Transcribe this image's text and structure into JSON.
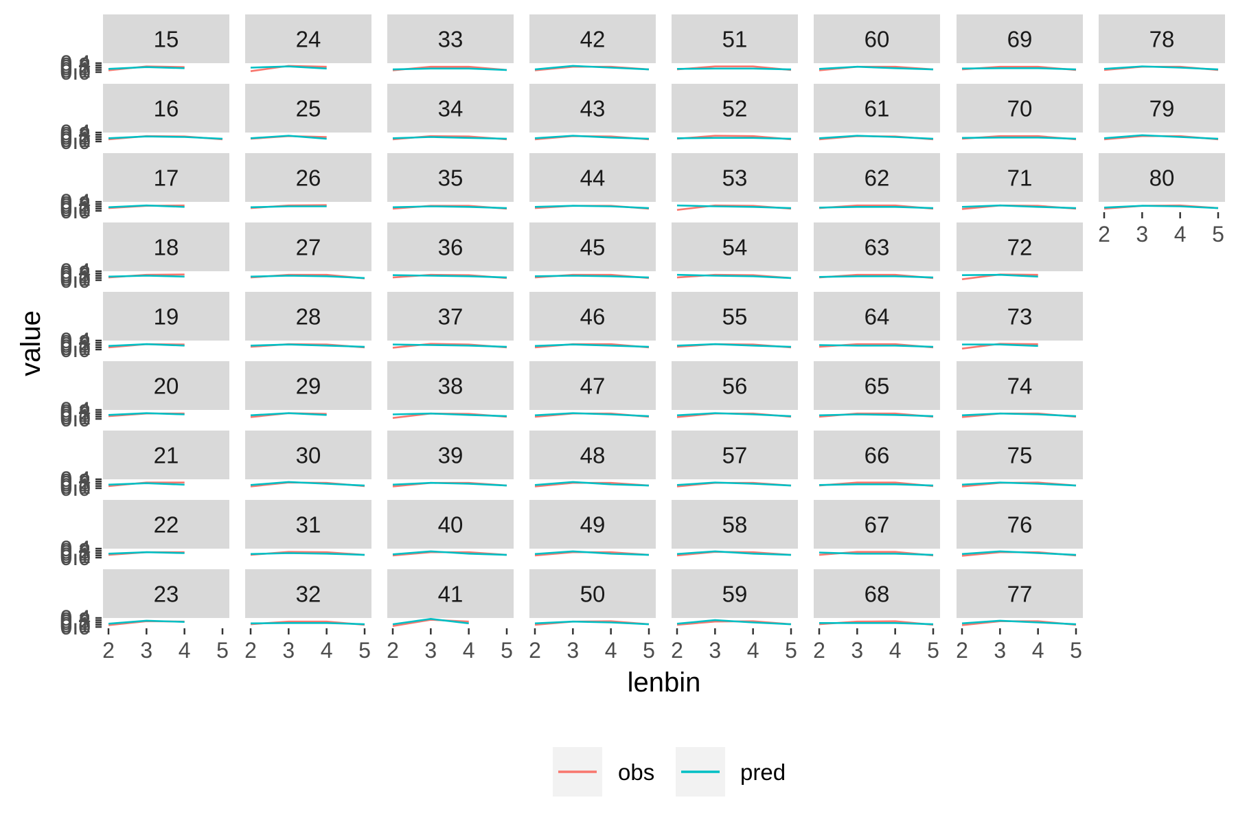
{
  "chart_data": {
    "type": "line",
    "facet_layout": "columns, 9 panels per column",
    "x_axis_label": "lenbin",
    "y_axis_label": "value",
    "x_ticks": [
      "2",
      "3",
      "4",
      "5"
    ],
    "xlim": [
      2,
      5
    ],
    "y_tick_labels": [
      "0.0",
      "0.1",
      "0.2",
      "0.3",
      "0.4"
    ],
    "ylim": [
      0,
      0.5
    ],
    "legend": {
      "position": "bottom",
      "entries": [
        {
          "name": "obs",
          "color": "#F8766D"
        },
        {
          "name": "pred",
          "color": "#00BFC4"
        }
      ]
    },
    "colors": {
      "panel_background": "#FFFFFF",
      "strip_background": "#D9D9D9",
      "axis_tick": "#333333"
    },
    "facets": [
      {
        "label": "15",
        "x": [
          2,
          3,
          4
        ],
        "obs": [
          0.1,
          0.32,
          0.28
        ],
        "pred": [
          0.18,
          0.28,
          0.22
        ]
      },
      {
        "label": "16",
        "x": [
          2,
          3,
          4,
          5
        ],
        "obs": [
          0.12,
          0.3,
          0.28,
          0.12
        ],
        "pred": [
          0.18,
          0.28,
          0.25,
          0.15
        ]
      },
      {
        "label": "17",
        "x": [
          2,
          3,
          4
        ],
        "obs": [
          0.15,
          0.28,
          0.3
        ],
        "pred": [
          0.2,
          0.3,
          0.22
        ]
      },
      {
        "label": "18",
        "x": [
          2,
          3,
          4
        ],
        "obs": [
          0.15,
          0.3,
          0.32
        ],
        "pred": [
          0.2,
          0.25,
          0.2
        ]
      },
      {
        "label": "19",
        "x": [
          2,
          3,
          4
        ],
        "obs": [
          0.12,
          0.3,
          0.28
        ],
        "pred": [
          0.2,
          0.3,
          0.22
        ]
      },
      {
        "label": "20",
        "x": [
          2,
          3,
          4
        ],
        "obs": [
          0.15,
          0.3,
          0.3
        ],
        "pred": [
          0.22,
          0.32,
          0.25
        ]
      },
      {
        "label": "21",
        "x": [
          2,
          3,
          4
        ],
        "obs": [
          0.12,
          0.32,
          0.32
        ],
        "pred": [
          0.2,
          0.28,
          0.2
        ]
      },
      {
        "label": "22",
        "x": [
          2,
          3,
          4
        ],
        "obs": [
          0.15,
          0.3,
          0.3
        ],
        "pred": [
          0.22,
          0.3,
          0.25
        ]
      },
      {
        "label": "23",
        "x": [
          2,
          3,
          4
        ],
        "obs": [
          0.1,
          0.32,
          0.3
        ],
        "pred": [
          0.18,
          0.35,
          0.28
        ]
      },
      {
        "label": "24",
        "x": [
          2,
          3,
          4
        ],
        "obs": [
          0.05,
          0.35,
          0.3
        ],
        "pred": [
          0.25,
          0.32,
          0.2
        ]
      },
      {
        "label": "25",
        "x": [
          2,
          3,
          4
        ],
        "obs": [
          0.15,
          0.3,
          0.25
        ],
        "pred": [
          0.18,
          0.32,
          0.15
        ]
      },
      {
        "label": "26",
        "x": [
          2,
          3,
          4
        ],
        "obs": [
          0.15,
          0.3,
          0.32
        ],
        "pred": [
          0.2,
          0.25,
          0.25
        ]
      },
      {
        "label": "27",
        "x": [
          2,
          3,
          4,
          5
        ],
        "obs": [
          0.15,
          0.3,
          0.3,
          0.1
        ],
        "pred": [
          0.2,
          0.25,
          0.22,
          0.12
        ]
      },
      {
        "label": "28",
        "x": [
          2,
          3,
          4,
          5
        ],
        "obs": [
          0.15,
          0.3,
          0.28,
          0.12
        ],
        "pred": [
          0.22,
          0.28,
          0.22,
          0.15
        ]
      },
      {
        "label": "29",
        "x": [
          2,
          3,
          4
        ],
        "obs": [
          0.1,
          0.32,
          0.28
        ],
        "pred": [
          0.2,
          0.32,
          0.22
        ]
      },
      {
        "label": "30",
        "x": [
          2,
          3,
          4,
          5
        ],
        "obs": [
          0.1,
          0.32,
          0.3,
          0.12
        ],
        "pred": [
          0.18,
          0.35,
          0.25,
          0.15
        ]
      },
      {
        "label": "31",
        "x": [
          2,
          3,
          4,
          5
        ],
        "obs": [
          0.15,
          0.32,
          0.3,
          0.15
        ],
        "pred": [
          0.2,
          0.25,
          0.22,
          0.15
        ]
      },
      {
        "label": "32",
        "x": [
          2,
          3,
          4,
          5
        ],
        "obs": [
          0.15,
          0.3,
          0.3,
          0.12
        ],
        "pred": [
          0.2,
          0.22,
          0.22,
          0.15
        ]
      },
      {
        "label": "33",
        "x": [
          2,
          3,
          4,
          5
        ],
        "obs": [
          0.1,
          0.3,
          0.3,
          0.12
        ],
        "pred": [
          0.15,
          0.2,
          0.2,
          0.12
        ]
      },
      {
        "label": "34",
        "x": [
          2,
          3,
          4,
          5
        ],
        "obs": [
          0.12,
          0.3,
          0.28,
          0.12
        ],
        "pred": [
          0.18,
          0.25,
          0.2,
          0.15
        ]
      },
      {
        "label": "35",
        "x": [
          2,
          3,
          4,
          5
        ],
        "obs": [
          0.12,
          0.28,
          0.28,
          0.12
        ],
        "pred": [
          0.2,
          0.25,
          0.22,
          0.15
        ]
      },
      {
        "label": "36",
        "x": [
          2,
          3,
          4,
          5
        ],
        "obs": [
          0.15,
          0.3,
          0.28,
          0.12
        ],
        "pred": [
          0.28,
          0.25,
          0.22,
          0.15
        ]
      },
      {
        "label": "37",
        "x": [
          2,
          3,
          4,
          5
        ],
        "obs": [
          0.1,
          0.32,
          0.28,
          0.12
        ],
        "pred": [
          0.28,
          0.25,
          0.22,
          0.15
        ]
      },
      {
        "label": "38",
        "x": [
          2,
          3,
          4,
          5
        ],
        "obs": [
          0.05,
          0.3,
          0.28,
          0.12
        ],
        "pred": [
          0.25,
          0.3,
          0.22,
          0.15
        ]
      },
      {
        "label": "39",
        "x": [
          2,
          3,
          4,
          5
        ],
        "obs": [
          0.1,
          0.3,
          0.3,
          0.15
        ],
        "pred": [
          0.2,
          0.3,
          0.25,
          0.15
        ]
      },
      {
        "label": "40",
        "x": [
          2,
          3,
          4,
          5
        ],
        "obs": [
          0.12,
          0.3,
          0.3,
          0.15
        ],
        "pred": [
          0.18,
          0.35,
          0.22,
          0.15
        ]
      },
      {
        "label": "41",
        "x": [
          2,
          3,
          4
        ],
        "obs": [
          0.05,
          0.4,
          0.3
        ],
        "pred": [
          0.15,
          0.45,
          0.2
        ]
      },
      {
        "label": "42",
        "x": [
          2,
          3,
          4,
          5
        ],
        "obs": [
          0.1,
          0.3,
          0.3,
          0.15
        ],
        "pred": [
          0.15,
          0.35,
          0.25,
          0.15
        ]
      },
      {
        "label": "43",
        "x": [
          2,
          3,
          4,
          5
        ],
        "obs": [
          0.12,
          0.3,
          0.28,
          0.12
        ],
        "pred": [
          0.18,
          0.32,
          0.22,
          0.15
        ]
      },
      {
        "label": "44",
        "x": [
          2,
          3,
          4,
          5
        ],
        "obs": [
          0.15,
          0.28,
          0.28,
          0.12
        ],
        "pred": [
          0.22,
          0.28,
          0.25,
          0.15
        ]
      },
      {
        "label": "45",
        "x": [
          2,
          3,
          4,
          5
        ],
        "obs": [
          0.15,
          0.3,
          0.3,
          0.12
        ],
        "pred": [
          0.22,
          0.25,
          0.22,
          0.15
        ]
      },
      {
        "label": "46",
        "x": [
          2,
          3,
          4,
          5
        ],
        "obs": [
          0.12,
          0.3,
          0.3,
          0.12
        ],
        "pred": [
          0.2,
          0.28,
          0.22,
          0.15
        ]
      },
      {
        "label": "47",
        "x": [
          2,
          3,
          4,
          5
        ],
        "obs": [
          0.12,
          0.3,
          0.3,
          0.12
        ],
        "pred": [
          0.2,
          0.32,
          0.25,
          0.15
        ]
      },
      {
        "label": "48",
        "x": [
          2,
          3,
          4,
          5
        ],
        "obs": [
          0.1,
          0.3,
          0.3,
          0.15
        ],
        "pred": [
          0.18,
          0.35,
          0.22,
          0.15
        ]
      },
      {
        "label": "49",
        "x": [
          2,
          3,
          4,
          5
        ],
        "obs": [
          0.12,
          0.3,
          0.3,
          0.15
        ],
        "pred": [
          0.2,
          0.35,
          0.22,
          0.15
        ]
      },
      {
        "label": "50",
        "x": [
          2,
          3,
          4,
          5
        ],
        "obs": [
          0.12,
          0.3,
          0.32,
          0.15
        ],
        "pred": [
          0.2,
          0.3,
          0.25,
          0.15
        ]
      },
      {
        "label": "51",
        "x": [
          2,
          3,
          4,
          5
        ],
        "obs": [
          0.15,
          0.32,
          0.32,
          0.12
        ],
        "pred": [
          0.18,
          0.2,
          0.2,
          0.15
        ]
      },
      {
        "label": "52",
        "x": [
          2,
          3,
          4,
          5
        ],
        "obs": [
          0.15,
          0.32,
          0.3,
          0.12
        ],
        "pred": [
          0.18,
          0.2,
          0.2,
          0.15
        ]
      },
      {
        "label": "53",
        "x": [
          2,
          3,
          4,
          5
        ],
        "obs": [
          0.05,
          0.3,
          0.28,
          0.12
        ],
        "pred": [
          0.3,
          0.25,
          0.22,
          0.15
        ]
      },
      {
        "label": "54",
        "x": [
          2,
          3,
          4,
          5
        ],
        "obs": [
          0.15,
          0.3,
          0.28,
          0.12
        ],
        "pred": [
          0.3,
          0.25,
          0.22,
          0.12
        ]
      },
      {
        "label": "55",
        "x": [
          2,
          3,
          4,
          5
        ],
        "obs": [
          0.15,
          0.3,
          0.28,
          0.12
        ],
        "pred": [
          0.22,
          0.3,
          0.22,
          0.15
        ]
      },
      {
        "label": "56",
        "x": [
          2,
          3,
          4,
          5
        ],
        "obs": [
          0.1,
          0.3,
          0.3,
          0.12
        ],
        "pred": [
          0.2,
          0.32,
          0.25,
          0.15
        ]
      },
      {
        "label": "57",
        "x": [
          2,
          3,
          4,
          5
        ],
        "obs": [
          0.1,
          0.3,
          0.3,
          0.15
        ],
        "pred": [
          0.18,
          0.32,
          0.25,
          0.15
        ]
      },
      {
        "label": "58",
        "x": [
          2,
          3,
          4,
          5
        ],
        "obs": [
          0.12,
          0.32,
          0.3,
          0.15
        ],
        "pred": [
          0.2,
          0.35,
          0.22,
          0.15
        ]
      },
      {
        "label": "59",
        "x": [
          2,
          3,
          4,
          5
        ],
        "obs": [
          0.12,
          0.3,
          0.32,
          0.15
        ],
        "pred": [
          0.18,
          0.38,
          0.25,
          0.15
        ]
      },
      {
        "label": "60",
        "x": [
          2,
          3,
          4,
          5
        ],
        "obs": [
          0.1,
          0.3,
          0.3,
          0.15
        ],
        "pred": [
          0.18,
          0.3,
          0.22,
          0.15
        ]
      },
      {
        "label": "61",
        "x": [
          2,
          3,
          4,
          5
        ],
        "obs": [
          0.12,
          0.3,
          0.28,
          0.12
        ],
        "pred": [
          0.18,
          0.32,
          0.25,
          0.15
        ]
      },
      {
        "label": "62",
        "x": [
          2,
          3,
          4,
          5
        ],
        "obs": [
          0.15,
          0.3,
          0.3,
          0.12
        ],
        "pred": [
          0.18,
          0.22,
          0.22,
          0.15
        ]
      },
      {
        "label": "63",
        "x": [
          2,
          3,
          4,
          5
        ],
        "obs": [
          0.15,
          0.3,
          0.3,
          0.12
        ],
        "pred": [
          0.18,
          0.22,
          0.22,
          0.15
        ]
      },
      {
        "label": "64",
        "x": [
          2,
          3,
          4,
          5
        ],
        "obs": [
          0.15,
          0.3,
          0.3,
          0.12
        ],
        "pred": [
          0.25,
          0.22,
          0.22,
          0.15
        ]
      },
      {
        "label": "65",
        "x": [
          2,
          3,
          4,
          5
        ],
        "obs": [
          0.12,
          0.3,
          0.3,
          0.12
        ],
        "pred": [
          0.2,
          0.25,
          0.22,
          0.15
        ]
      },
      {
        "label": "66",
        "x": [
          2,
          3,
          4,
          5
        ],
        "obs": [
          0.15,
          0.32,
          0.32,
          0.12
        ],
        "pred": [
          0.18,
          0.22,
          0.22,
          0.15
        ]
      },
      {
        "label": "67",
        "x": [
          2,
          3,
          4,
          5
        ],
        "obs": [
          0.15,
          0.32,
          0.32,
          0.12
        ],
        "pred": [
          0.28,
          0.22,
          0.22,
          0.15
        ]
      },
      {
        "label": "68",
        "x": [
          2,
          3,
          4,
          5
        ],
        "obs": [
          0.15,
          0.3,
          0.32,
          0.12
        ],
        "pred": [
          0.22,
          0.22,
          0.22,
          0.15
        ]
      },
      {
        "label": "69",
        "x": [
          2,
          3,
          4,
          5
        ],
        "obs": [
          0.15,
          0.3,
          0.3,
          0.12
        ],
        "pred": [
          0.2,
          0.22,
          0.22,
          0.15
        ]
      },
      {
        "label": "70",
        "x": [
          2,
          3,
          4,
          5
        ],
        "obs": [
          0.15,
          0.3,
          0.3,
          0.12
        ],
        "pred": [
          0.2,
          0.22,
          0.22,
          0.15
        ]
      },
      {
        "label": "71",
        "x": [
          2,
          3,
          4,
          5
        ],
        "obs": [
          0.1,
          0.3,
          0.28,
          0.12
        ],
        "pred": [
          0.22,
          0.3,
          0.22,
          0.15
        ]
      },
      {
        "label": "72",
        "x": [
          2,
          3,
          4
        ],
        "obs": [
          0.05,
          0.32,
          0.3
        ],
        "pred": [
          0.28,
          0.3,
          0.2
        ]
      },
      {
        "label": "73",
        "x": [
          2,
          3,
          4
        ],
        "obs": [
          0.05,
          0.32,
          0.3
        ],
        "pred": [
          0.28,
          0.28,
          0.2
        ]
      },
      {
        "label": "74",
        "x": [
          2,
          3,
          4,
          5
        ],
        "obs": [
          0.1,
          0.3,
          0.3,
          0.12
        ],
        "pred": [
          0.2,
          0.3,
          0.25,
          0.15
        ]
      },
      {
        "label": "75",
        "x": [
          2,
          3,
          4,
          5
        ],
        "obs": [
          0.1,
          0.3,
          0.32,
          0.15
        ],
        "pred": [
          0.2,
          0.32,
          0.25,
          0.15
        ]
      },
      {
        "label": "76",
        "x": [
          2,
          3,
          4,
          5
        ],
        "obs": [
          0.1,
          0.3,
          0.3,
          0.12
        ],
        "pred": [
          0.2,
          0.35,
          0.25,
          0.15
        ]
      },
      {
        "label": "77",
        "x": [
          2,
          3,
          4,
          5
        ],
        "obs": [
          0.1,
          0.32,
          0.32,
          0.12
        ],
        "pred": [
          0.2,
          0.35,
          0.25,
          0.15
        ]
      },
      {
        "label": "78",
        "x": [
          2,
          3,
          4,
          5
        ],
        "obs": [
          0.12,
          0.3,
          0.3,
          0.12
        ],
        "pred": [
          0.18,
          0.32,
          0.25,
          0.15
        ]
      },
      {
        "label": "79",
        "x": [
          2,
          3,
          4,
          5
        ],
        "obs": [
          0.12,
          0.3,
          0.3,
          0.12
        ],
        "pred": [
          0.18,
          0.35,
          0.25,
          0.15
        ]
      },
      {
        "label": "80",
        "x": [
          2,
          3,
          4,
          5
        ],
        "obs": [
          0.12,
          0.28,
          0.3,
          0.15
        ],
        "pred": [
          0.18,
          0.28,
          0.25,
          0.15
        ]
      }
    ]
  }
}
